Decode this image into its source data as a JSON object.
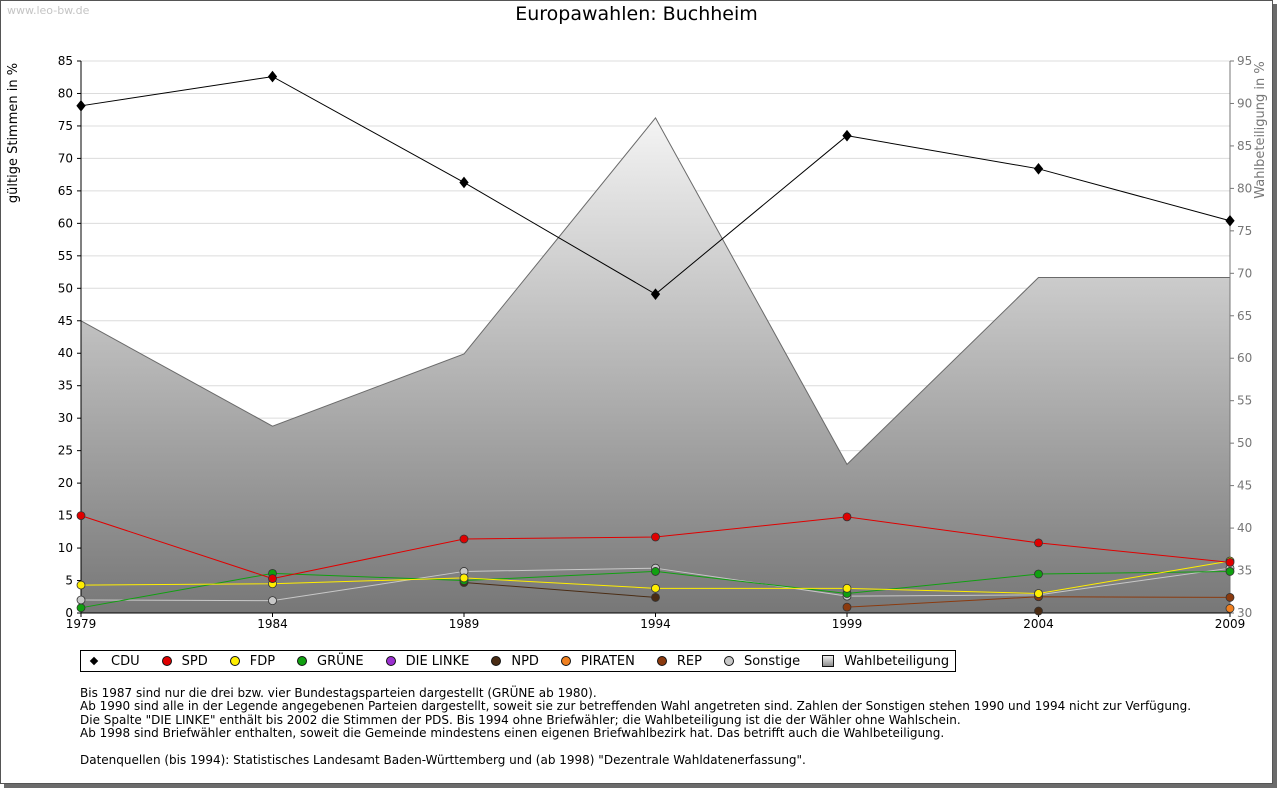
{
  "watermark": "www.leo-bw.de",
  "chart_data": {
    "type": "line",
    "title": "Europawahlen: Buchheim",
    "ylabel": "gültige Stimmen in %",
    "y2label": "Wahlbeteiligung in %",
    "x": [
      "1979",
      "1984",
      "1989",
      "1994",
      "1999",
      "2004",
      "2009"
    ],
    "ylim": [
      0,
      85
    ],
    "yticks": [
      0,
      5,
      10,
      15,
      20,
      25,
      30,
      35,
      40,
      45,
      50,
      55,
      60,
      65,
      70,
      75,
      80,
      85
    ],
    "y2lim": [
      30,
      95
    ],
    "y2ticks": [
      30,
      35,
      40,
      45,
      50,
      55,
      60,
      65,
      70,
      75,
      80,
      85,
      90,
      95
    ],
    "grid": true,
    "legend_position": "bottom",
    "series": [
      {
        "name": "CDU",
        "color": "#000000",
        "values": [
          78.1,
          82.6,
          66.3,
          49.1,
          73.5,
          68.4,
          60.4
        ]
      },
      {
        "name": "SPD",
        "color": "#e00000",
        "values": [
          15.0,
          5.3,
          11.4,
          11.7,
          14.8,
          10.8,
          7.8
        ]
      },
      {
        "name": "FDP",
        "color": "#ffee00",
        "values": [
          4.3,
          4.5,
          5.4,
          3.8,
          3.8,
          3.0,
          8.0
        ]
      },
      {
        "name": "GRÜNE",
        "color": "#10a010",
        "values": [
          0.8,
          6.1,
          5.0,
          6.4,
          3.0,
          6.0,
          6.4
        ]
      },
      {
        "name": "DIE LINKE",
        "color": "#9b30d0",
        "values": [
          null,
          null,
          null,
          null,
          null,
          null,
          null
        ]
      },
      {
        "name": "NPD",
        "color": "#4a2c14",
        "values": [
          null,
          null,
          4.7,
          2.4,
          null,
          0.3,
          null
        ]
      },
      {
        "name": "PIRATEN",
        "color": "#f08020",
        "values": [
          null,
          null,
          null,
          null,
          null,
          null,
          0.7
        ]
      },
      {
        "name": "REP",
        "color": "#8b3a0e",
        "values": [
          null,
          null,
          null,
          null,
          0.9,
          2.5,
          2.4
        ]
      },
      {
        "name": "Sonstige",
        "color": "#c8c8c8",
        "values": [
          2.0,
          1.9,
          6.4,
          6.9,
          2.6,
          2.8,
          6.9
        ]
      }
    ],
    "turnout": {
      "name": "Wahlbeteiligung",
      "axis": "right",
      "values": [
        64.4,
        52.0,
        60.5,
        88.3,
        47.5,
        69.5,
        69.5
      ]
    }
  },
  "notes": [
    "Bis 1987 sind nur die drei bzw. vier Bundestagsparteien dargestellt (GRÜNE ab 1980).",
    "Ab 1990 sind alle in der Legende angegebenen Parteien dargestellt, soweit sie zur betreffenden Wahl angetreten sind. Zahlen der Sonstigen stehen 1990 und 1994 nicht zur Verfügung.",
    "Die Spalte \"DIE LINKE\" enthält bis 2002 die Stimmen der PDS. Bis 1994 ohne Briefwähler; die Wahlbeteiligung ist die der Wähler ohne Wahlschein.",
    "Ab 1998 sind Briefwähler enthalten, soweit die Gemeinde mindestens einen eigenen Briefwahlbezirk hat. Das betrifft auch die Wahlbeteiligung."
  ],
  "source": "Datenquellen (bis 1994): Statistisches Landesamt Baden-Württemberg und (ab 1998) \"Dezentrale Wahldatenerfassung\"."
}
